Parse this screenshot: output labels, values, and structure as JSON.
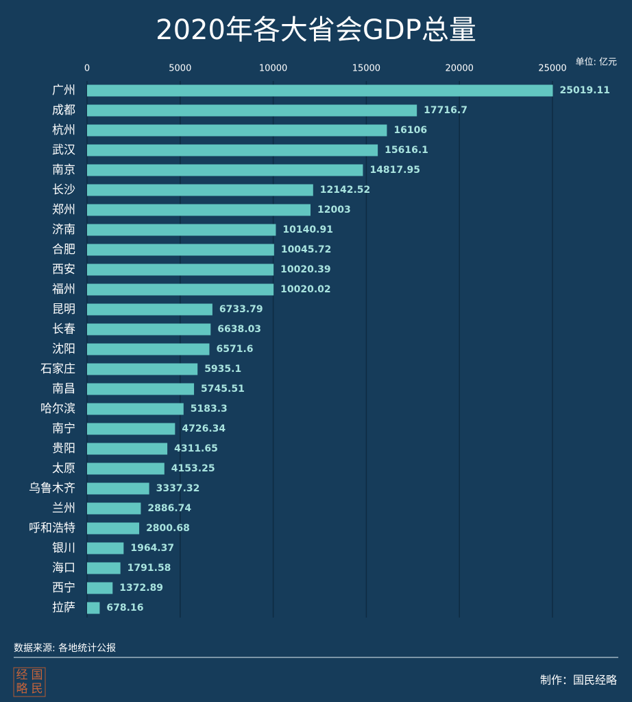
{
  "chart_data": {
    "type": "barh",
    "title": "2020年各大省会GDP总量",
    "unit": "单位: 亿元",
    "categories": [
      "广州",
      "成都",
      "杭州",
      "武汉",
      "南京",
      "长沙",
      "郑州",
      "济南",
      "合肥",
      "西安",
      "福州",
      "昆明",
      "长春",
      "沈阳",
      "石家庄",
      "南昌",
      "哈尔滨",
      "南宁",
      "贵阳",
      "太原",
      "乌鲁木齐",
      "兰州",
      "呼和浩特",
      "银川",
      "海口",
      "西宁",
      "拉萨"
    ],
    "values": [
      25019.11,
      17716.7,
      16106,
      15616.1,
      14817.95,
      12142.52,
      12003,
      10140.91,
      10045.72,
      10020.39,
      10020.02,
      6733.79,
      6638.03,
      6571.6,
      5935.1,
      5745.51,
      5183.3,
      4726.34,
      4311.65,
      4153.25,
      3337.32,
      2886.74,
      2800.68,
      1964.37,
      1791.58,
      1372.89,
      678.16
    ],
    "color": "#62c6c1",
    "xlim": [
      0,
      25000
    ],
    "xticks": [
      0,
      5000,
      10000,
      15000,
      20000,
      25000
    ],
    "grid": true,
    "source": "数据来源: 各地统计公报",
    "credit": "制作：国民经略",
    "logo": [
      "经",
      "国",
      "略",
      "民"
    ]
  }
}
